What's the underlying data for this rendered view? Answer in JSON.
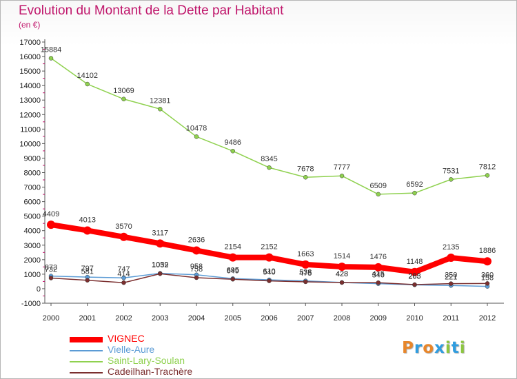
{
  "header": {
    "title": "Evolution du Montant de la Dette par Habitant",
    "subtitle": "(en €)"
  },
  "colors": {
    "title": "#c0176c",
    "axis": "#555555",
    "grid_tick": "#c0176c"
  },
  "chart_data": {
    "type": "line",
    "title": "Evolution du Montant de la Dette par Habitant",
    "subtitle": "(en €)",
    "xlabel": "",
    "ylabel": "",
    "x": [
      "2000",
      "2001",
      "2002",
      "2003",
      "2004",
      "2005",
      "2006",
      "2007",
      "2008",
      "2009",
      "2010",
      "2011",
      "2012"
    ],
    "ylim": [
      -1000,
      17000
    ],
    "yticks": [
      "17000",
      "16000",
      "15000",
      "14000",
      "13000",
      "12000",
      "11000",
      "10000",
      "9000",
      "8000",
      "7000",
      "6000",
      "5000",
      "4000",
      "3000",
      "2000",
      "1000",
      "0",
      "-1000"
    ],
    "legend_position": "bottom-left",
    "series": [
      {
        "name": "VIGNEC",
        "color": "#ff0000",
        "values": [
          4409,
          4013,
          3570,
          3117,
          2636,
          2154,
          2152,
          1663,
          1514,
          1476,
          1148,
          2135,
          1886
        ],
        "labels": [
          "4409",
          "4013",
          "3570",
          "3117",
          "2636",
          "2154",
          "2152",
          "1663",
          "1514",
          "1476",
          "1148",
          "2135",
          "1886"
        ]
      },
      {
        "name": "Vielle-Aure",
        "color": "#5b9bd5",
        "values": [
          873,
          797,
          747,
          1059,
          958,
          695,
          610,
          538,
          428,
          346,
          265,
          221,
          158
        ],
        "labels": [
          "873",
          "797",
          "747",
          "1059",
          "958",
          "695",
          "610",
          "538",
          "428",
          "346",
          "265",
          "221",
          "158"
        ]
      },
      {
        "name": "Saint-Lary-Soulan",
        "color": "#8fd14f",
        "values": [
          15884,
          14102,
          13069,
          12381,
          10478,
          9486,
          8345,
          7678,
          7777,
          6509,
          6592,
          7531,
          7812
        ],
        "labels": [
          "15884",
          "14102",
          "13069",
          "12381",
          "10478",
          "9486",
          "8345",
          "7678",
          "7777",
          "6509",
          "6592",
          "7531",
          "7812"
        ]
      },
      {
        "name": "Cadeilhan-Trachère",
        "color": "#7b2f2f",
        "values": [
          732,
          581,
          414,
          1032,
          758,
          649,
          540,
          475,
          423,
          415,
          283,
          350,
          360
        ],
        "labels": [
          "732",
          "581",
          "414",
          "1032",
          "758",
          "649",
          "540",
          "475",
          "423",
          "415",
          "283",
          "350",
          "360"
        ]
      }
    ]
  },
  "legend": {
    "items": [
      {
        "label": "VIGNEC",
        "color": "#ff0000"
      },
      {
        "label": "Vielle-Aure",
        "color": "#5b9bd5"
      },
      {
        "label": "Saint-Lary-Soulan",
        "color": "#8fd14f"
      },
      {
        "label": "Cadeilhan-Trachère",
        "color": "#7b2f2f"
      }
    ]
  },
  "logo": {
    "text": "Proxiti",
    "letters": [
      {
        "char": "P",
        "color": "#e8862a"
      },
      {
        "char": "r",
        "color": "#2f9de0"
      },
      {
        "char": "o",
        "color": "#e8862a"
      },
      {
        "char": "x",
        "color": "#2f9de0"
      },
      {
        "char": "i",
        "color": "#8cc63f"
      },
      {
        "char": "t",
        "color": "#2f9de0"
      },
      {
        "char": "i",
        "color": "#8cc63f"
      }
    ]
  }
}
